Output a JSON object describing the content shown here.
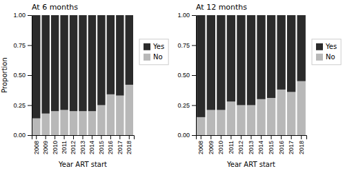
{
  "chart_data": [
    {
      "type": "bar",
      "title": "At 6 months",
      "stacked": true,
      "grid": false,
      "legend": "right",
      "xlabel": "Year ART start",
      "ylabel": "Proportion",
      "categories": [
        "2008",
        "2009",
        "2010",
        "2011",
        "2012",
        "2013",
        "2014",
        "2015",
        "2016",
        "2017",
        "2018"
      ],
      "series": [
        {
          "name": "No",
          "color": "#b8b8b8",
          "values": [
            0.14,
            0.18,
            0.2,
            0.21,
            0.2,
            0.2,
            0.2,
            0.25,
            0.34,
            0.33,
            0.42
          ]
        },
        {
          "name": "Yes",
          "color": "#2b2b2b",
          "values": [
            0.86,
            0.82,
            0.8,
            0.79,
            0.8,
            0.8,
            0.8,
            0.75,
            0.66,
            0.67,
            0.58
          ]
        }
      ],
      "ylim": [
        0,
        1.0
      ],
      "yticks": [
        {
          "value": 0,
          "label": "0.00"
        },
        {
          "value": 0.25,
          "label": "0.25"
        },
        {
          "value": 0.5,
          "label": "0.50"
        },
        {
          "value": 0.75,
          "label": "0.75"
        },
        {
          "value": 1.0,
          "label": "1.00"
        }
      ]
    },
    {
      "type": "bar",
      "title": "At 12 months",
      "stacked": true,
      "grid": false,
      "legend": "right",
      "xlabel": "Year ART start",
      "categories": [
        "2008",
        "2009",
        "2010",
        "2011",
        "2012",
        "2013",
        "2014",
        "2015",
        "2016",
        "2017",
        "2018"
      ],
      "series": [
        {
          "name": "No",
          "color": "#b8b8b8",
          "values": [
            0.15,
            0.21,
            0.21,
            0.28,
            0.25,
            0.25,
            0.3,
            0.31,
            0.38,
            0.36,
            0.45
          ]
        },
        {
          "name": "Yes",
          "color": "#2b2b2b",
          "values": [
            0.85,
            0.79,
            0.79,
            0.72,
            0.75,
            0.75,
            0.7,
            0.69,
            0.62,
            0.64,
            0.55
          ]
        }
      ],
      "ylim": [
        0,
        1.0
      ],
      "yticks": [
        {
          "value": 0,
          "label": "0.00"
        },
        {
          "value": 0.25,
          "label": "0.25"
        },
        {
          "value": 0.5,
          "label": "0.50"
        },
        {
          "value": 0.75,
          "label": "0.75"
        },
        {
          "value": 1.0,
          "label": "1.00"
        }
      ]
    }
  ]
}
